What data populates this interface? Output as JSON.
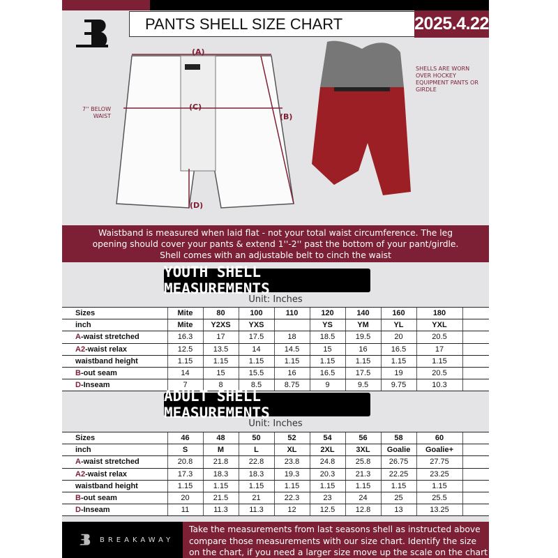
{
  "header": {
    "title": "PANTS SHELL SIZE CHART",
    "date": "2025.4.22",
    "brand_logo": "B"
  },
  "diagram": {
    "label_a": "(A)",
    "label_b": "(B)",
    "label_c": "(C)",
    "label_d": "(D)",
    "below_waist_note": "7'' BELOW WAIST",
    "photo_note": "SHELLS ARE WORN OVER HOCKEY EQUIPMENT PANTS OR GIRDLE"
  },
  "band_text": {
    "line1": "Waistband is measured when laid flat - not your total waist circumference. The leg",
    "line2": "opening should cover your pants & extend 1''-2'' past the bottom of your pant/girdle.",
    "line3": "Shell comes with an adjustable belt to cinch the waist"
  },
  "youth": {
    "heading": "YOUTH SHELL MEASUREMENTS",
    "unit": "Unit: Inches",
    "rows": [
      {
        "prefix": "",
        "label": "Sizes",
        "values": [
          "Mite",
          "80",
          "100",
          "110",
          "120",
          "140",
          "160",
          "180"
        ]
      },
      {
        "prefix": "",
        "label": "inch",
        "values": [
          "Mite",
          "Y2XS",
          "YXS",
          "",
          "YS",
          "YM",
          "YL",
          "YXL"
        ]
      },
      {
        "prefix": "A",
        "label": "-waist stretched",
        "values": [
          "16.3",
          "17",
          "17.5",
          "18",
          "18.5",
          "19.5",
          "20",
          "20.5"
        ]
      },
      {
        "prefix": "A2",
        "label": "-waist relax",
        "values": [
          "12.5",
          "13.5",
          "14",
          "14.5",
          "15",
          "16",
          "16.5",
          "17"
        ]
      },
      {
        "prefix": "",
        "label": "waistband height",
        "values": [
          "1.15",
          "1.15",
          "1.15",
          "1.15",
          "1.15",
          "1.15",
          "1.15",
          "1.15"
        ]
      },
      {
        "prefix": "B",
        "label": "-out seam",
        "values": [
          "14",
          "15",
          "15.5",
          "16",
          "16.5",
          "17.5",
          "19",
          "20.5"
        ]
      },
      {
        "prefix": "D",
        "label": "-Inseam",
        "values": [
          "7",
          "8",
          "8.5",
          "8.75",
          "9",
          "9.5",
          "9.75",
          "10.3"
        ]
      }
    ]
  },
  "adult": {
    "heading": "ADULT SHELL MEASUREMENTS",
    "unit": "Unit: Inches",
    "rows": [
      {
        "prefix": "",
        "label": "Sizes",
        "values": [
          "46",
          "48",
          "50",
          "52",
          "54",
          "56",
          "58",
          "60"
        ]
      },
      {
        "prefix": "",
        "label": "inch",
        "values": [
          "S",
          "M",
          "L",
          "XL",
          "2XL",
          "3XL",
          "Goalie",
          "Goalie+"
        ]
      },
      {
        "prefix": "A",
        "label": "-waist stretched",
        "values": [
          "20.8",
          "21.8",
          "22.8",
          "23.8",
          "24.8",
          "25.8",
          "26.75",
          "27.75"
        ]
      },
      {
        "prefix": "A2",
        "label": "-waist relax",
        "values": [
          "17.3",
          "18.3",
          "18.3",
          "19.3",
          "20.3",
          "21.3",
          "22.25",
          "23.25"
        ]
      },
      {
        "prefix": "",
        "label": "waistband height",
        "values": [
          "1.15",
          "1.15",
          "1.15",
          "1.15",
          "1.15",
          "1.15",
          "1.15",
          "1.15"
        ]
      },
      {
        "prefix": "B",
        "label": "-out seam",
        "values": [
          "20",
          "21.5",
          "21",
          "22.3",
          "23",
          "24",
          "25",
          "25.5"
        ]
      },
      {
        "prefix": "D",
        "label": "-Inseam",
        "values": [
          "11",
          "11.3",
          "11.3",
          "12",
          "12.5",
          "12.8",
          "13",
          "13.25"
        ]
      }
    ]
  },
  "footer": {
    "brand": "BREAKAWAY",
    "line1": "Take the measurements from last seasons shell as instructed above",
    "line2": "compare those measurements  with our size chart. Identify the size",
    "line3": "on the chart, if you need a larger size move up the scale on the chart"
  },
  "colors": {
    "maroon": "#7d2035",
    "background": "#e4e4e6",
    "black": "#000000"
  }
}
